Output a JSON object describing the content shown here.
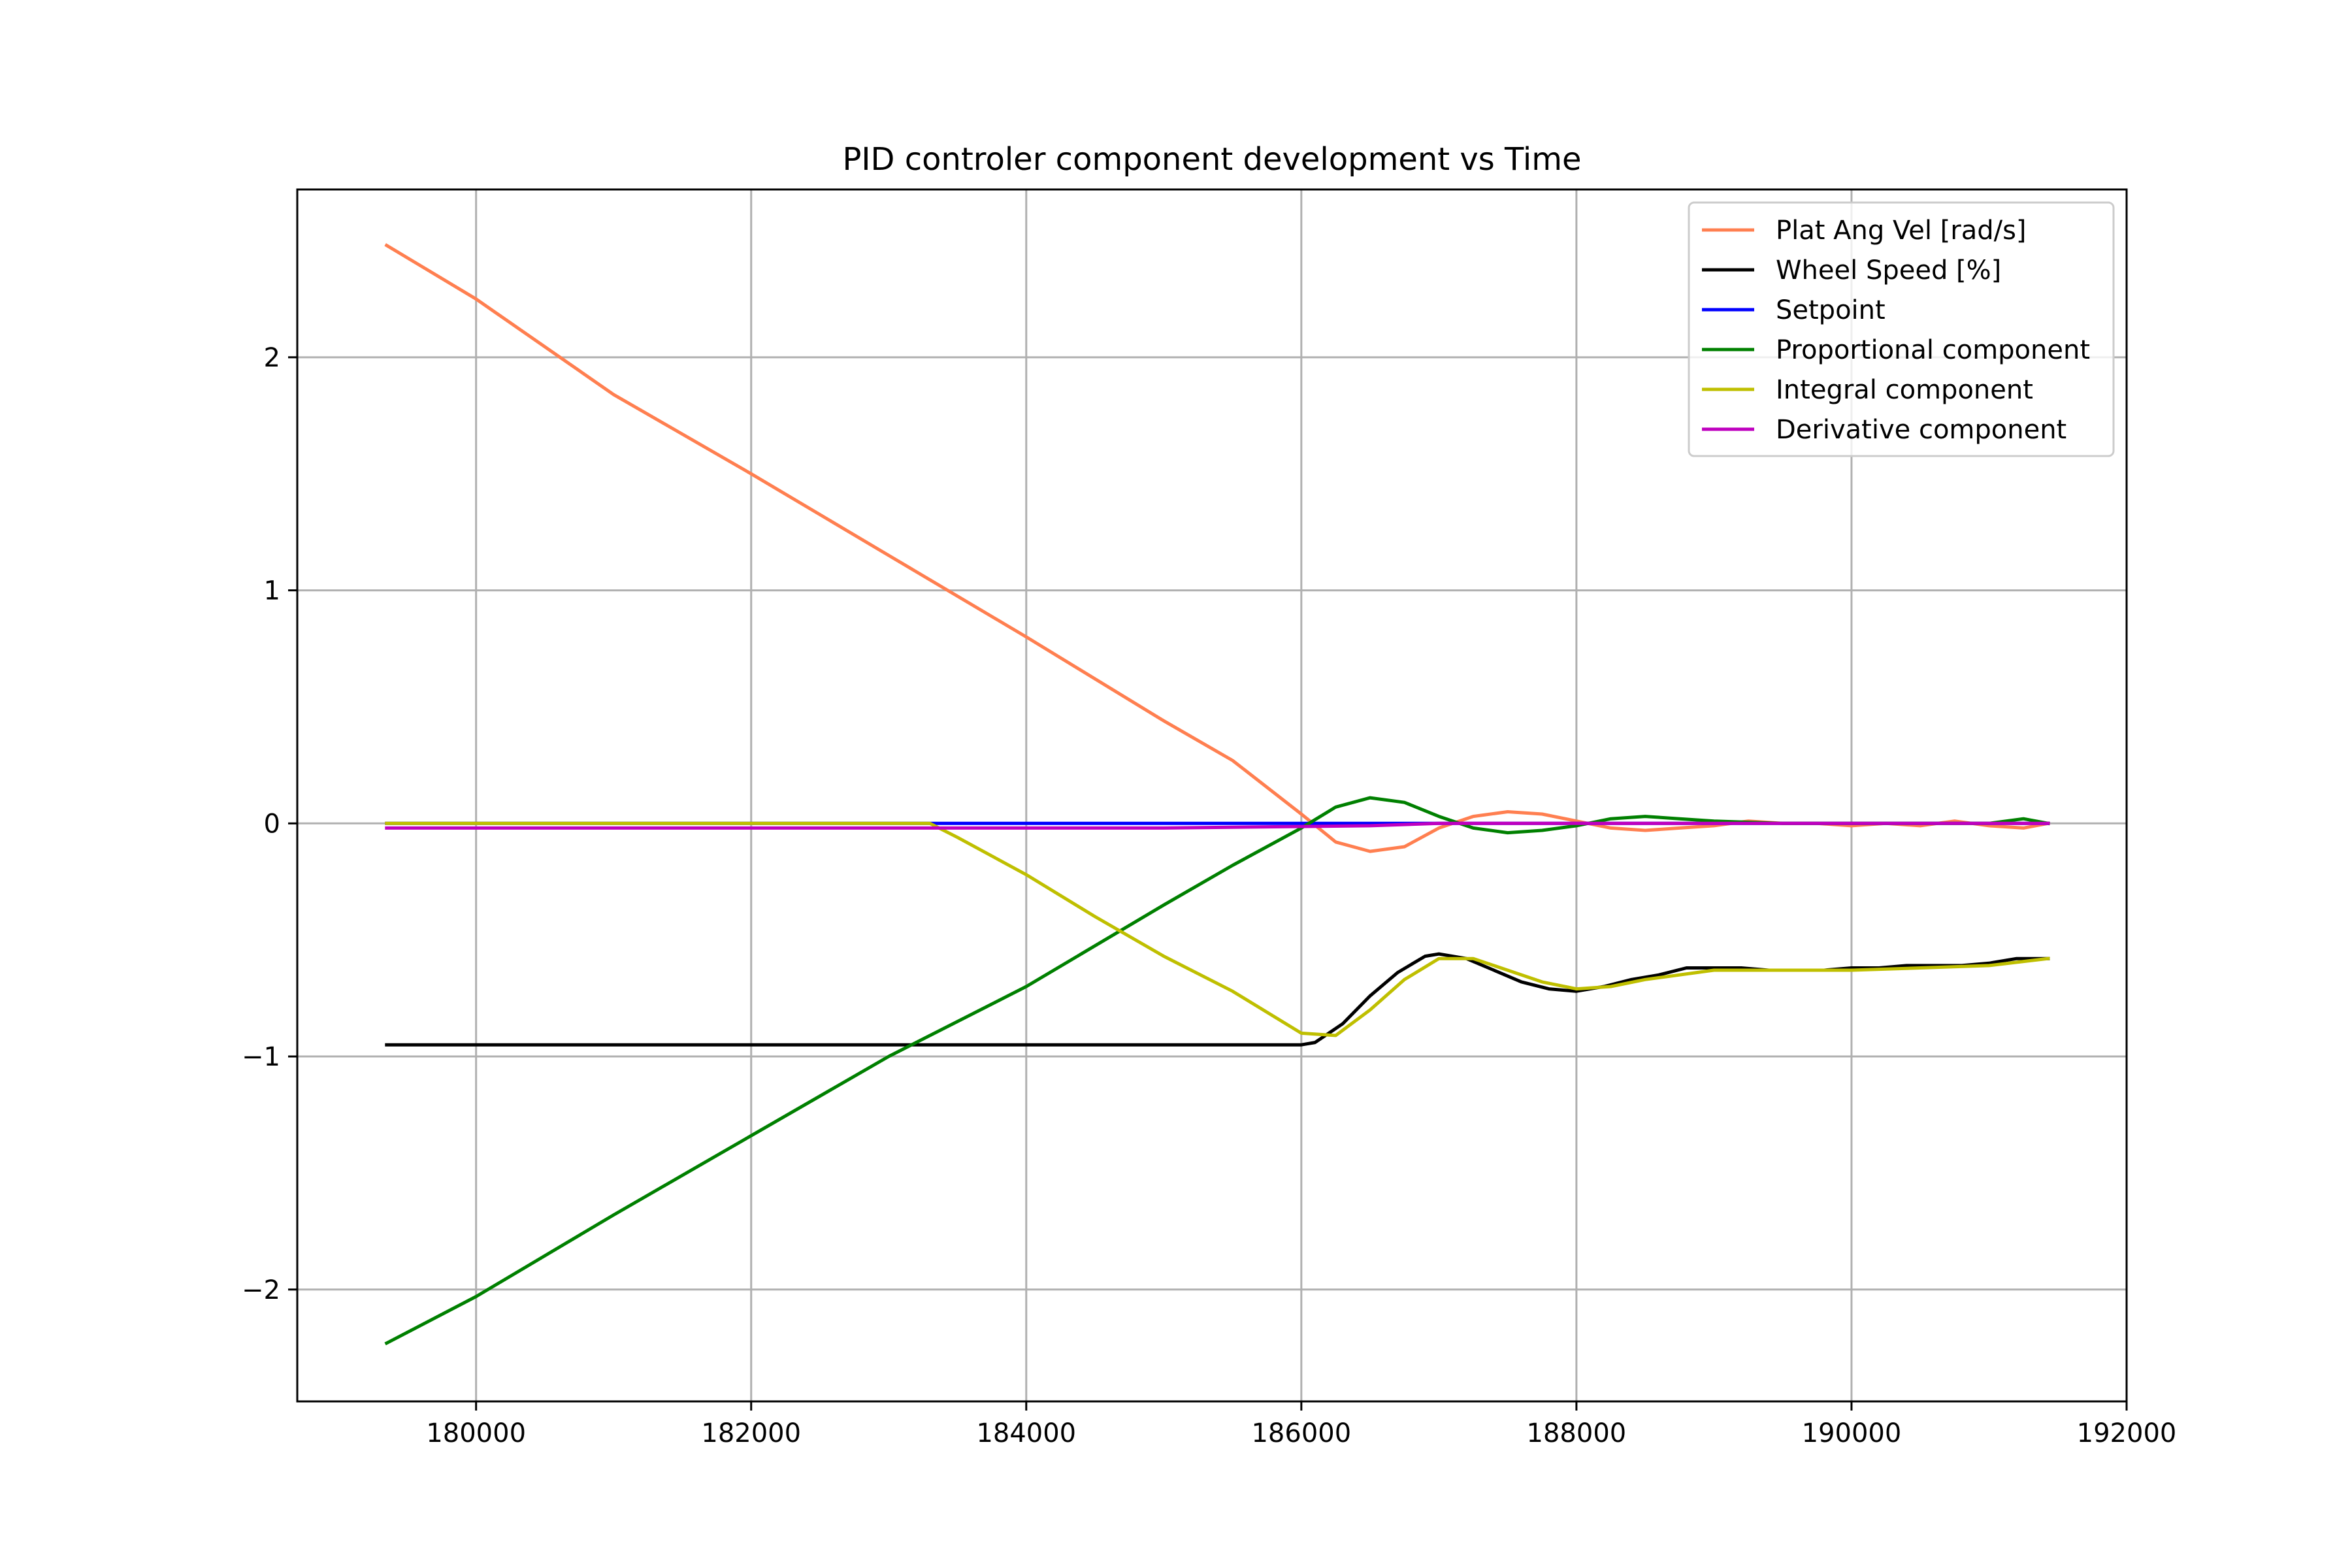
{
  "chart_data": {
    "type": "line",
    "title": "PID controler component development vs Time",
    "xlabel": "",
    "ylabel": "",
    "xlim": [
      178700,
      192000
    ],
    "ylim": [
      -2.48,
      2.72
    ],
    "grid": true,
    "legend_position": "top-right",
    "x_ticks": [
      180000,
      182000,
      184000,
      186000,
      188000,
      190000,
      192000
    ],
    "y_ticks": [
      -2,
      -1,
      0,
      1,
      2
    ],
    "y_tick_labels": [
      "−2",
      "−1",
      "0",
      "1",
      "2"
    ],
    "series": [
      {
        "name": "Plat Ang Vel [rad/s]",
        "color": "#ff7f50",
        "points": [
          [
            179350,
            2.48
          ],
          [
            180000,
            2.25
          ],
          [
            181000,
            1.84
          ],
          [
            182000,
            1.5
          ],
          [
            183000,
            1.15
          ],
          [
            184000,
            0.8
          ],
          [
            185000,
            0.44
          ],
          [
            185500,
            0.27
          ],
          [
            186000,
            0.04
          ],
          [
            186250,
            -0.08
          ],
          [
            186500,
            -0.12
          ],
          [
            186750,
            -0.1
          ],
          [
            187000,
            -0.02
          ],
          [
            187250,
            0.03
          ],
          [
            187500,
            0.05
          ],
          [
            187750,
            0.04
          ],
          [
            188000,
            0.01
          ],
          [
            188250,
            -0.02
          ],
          [
            188500,
            -0.03
          ],
          [
            188750,
            -0.02
          ],
          [
            189000,
            -0.01
          ],
          [
            189250,
            0.01
          ],
          [
            189500,
            0.0
          ],
          [
            189750,
            0.0
          ],
          [
            190000,
            -0.01
          ],
          [
            190250,
            0.0
          ],
          [
            190500,
            -0.01
          ],
          [
            190750,
            0.01
          ],
          [
            191000,
            -0.01
          ],
          [
            191250,
            -0.02
          ],
          [
            191430,
            0.0
          ]
        ]
      },
      {
        "name": "Wheel Speed [%]",
        "color": "#000000",
        "points": [
          [
            179350,
            -0.95
          ],
          [
            180000,
            -0.95
          ],
          [
            182000,
            -0.95
          ],
          [
            184000,
            -0.95
          ],
          [
            186000,
            -0.95
          ],
          [
            186100,
            -0.94
          ],
          [
            186300,
            -0.86
          ],
          [
            186500,
            -0.74
          ],
          [
            186700,
            -0.64
          ],
          [
            186900,
            -0.57
          ],
          [
            187000,
            -0.56
          ],
          [
            187200,
            -0.58
          ],
          [
            187400,
            -0.63
          ],
          [
            187600,
            -0.68
          ],
          [
            187800,
            -0.71
          ],
          [
            188000,
            -0.72
          ],
          [
            188200,
            -0.7
          ],
          [
            188400,
            -0.67
          ],
          [
            188600,
            -0.65
          ],
          [
            188800,
            -0.62
          ],
          [
            189000,
            -0.62
          ],
          [
            189200,
            -0.62
          ],
          [
            189400,
            -0.63
          ],
          [
            189600,
            -0.63
          ],
          [
            189800,
            -0.63
          ],
          [
            190000,
            -0.62
          ],
          [
            190200,
            -0.62
          ],
          [
            190400,
            -0.61
          ],
          [
            190600,
            -0.61
          ],
          [
            190800,
            -0.61
          ],
          [
            191000,
            -0.6
          ],
          [
            191200,
            -0.58
          ],
          [
            191430,
            -0.58
          ]
        ]
      },
      {
        "name": "Setpoint",
        "color": "#0000ff",
        "points": [
          [
            179350,
            0.0
          ],
          [
            191430,
            0.0
          ]
        ]
      },
      {
        "name": "Proportional component",
        "color": "#008000",
        "points": [
          [
            179350,
            -2.23
          ],
          [
            180000,
            -2.03
          ],
          [
            181000,
            -1.68
          ],
          [
            182000,
            -1.34
          ],
          [
            183000,
            -1.0
          ],
          [
            184000,
            -0.7
          ],
          [
            185000,
            -0.35
          ],
          [
            185500,
            -0.18
          ],
          [
            186000,
            -0.02
          ],
          [
            186250,
            0.07
          ],
          [
            186500,
            0.11
          ],
          [
            186750,
            0.09
          ],
          [
            187000,
            0.03
          ],
          [
            187250,
            -0.02
          ],
          [
            187500,
            -0.04
          ],
          [
            187750,
            -0.03
          ],
          [
            188000,
            -0.01
          ],
          [
            188250,
            0.02
          ],
          [
            188500,
            0.03
          ],
          [
            188750,
            0.02
          ],
          [
            189000,
            0.01
          ],
          [
            189500,
            0.0
          ],
          [
            190000,
            0.0
          ],
          [
            190500,
            0.0
          ],
          [
            191000,
            0.0
          ],
          [
            191250,
            0.02
          ],
          [
            191430,
            0.0
          ]
        ]
      },
      {
        "name": "Integral component",
        "color": "#bfbf00",
        "points": [
          [
            179350,
            0.0
          ],
          [
            181000,
            0.0
          ],
          [
            183000,
            0.0
          ],
          [
            183300,
            0.0
          ],
          [
            183500,
            -0.06
          ],
          [
            184000,
            -0.22
          ],
          [
            184500,
            -0.4
          ],
          [
            185000,
            -0.57
          ],
          [
            185500,
            -0.72
          ],
          [
            186000,
            -0.9
          ],
          [
            186250,
            -0.91
          ],
          [
            186500,
            -0.8
          ],
          [
            186750,
            -0.67
          ],
          [
            187000,
            -0.58
          ],
          [
            187250,
            -0.58
          ],
          [
            187500,
            -0.63
          ],
          [
            187750,
            -0.68
          ],
          [
            188000,
            -0.71
          ],
          [
            188250,
            -0.7
          ],
          [
            188500,
            -0.67
          ],
          [
            189000,
            -0.63
          ],
          [
            189500,
            -0.63
          ],
          [
            190000,
            -0.63
          ],
          [
            190500,
            -0.62
          ],
          [
            191000,
            -0.61
          ],
          [
            191430,
            -0.58
          ]
        ]
      },
      {
        "name": "Derivative component",
        "color": "#bf00bf",
        "points": [
          [
            179350,
            -0.02
          ],
          [
            181000,
            -0.02
          ],
          [
            183000,
            -0.02
          ],
          [
            185000,
            -0.02
          ],
          [
            186500,
            -0.01
          ],
          [
            187000,
            0.0
          ],
          [
            188000,
            0.0
          ],
          [
            189000,
            0.0
          ],
          [
            190000,
            0.0
          ],
          [
            191430,
            0.0
          ]
        ]
      }
    ]
  }
}
